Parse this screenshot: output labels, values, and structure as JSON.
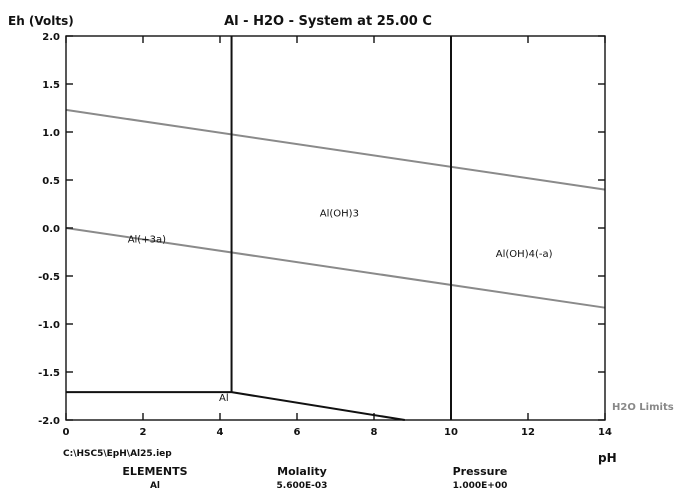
{
  "chart_data": {
    "type": "line",
    "title": "Al - H2O - System at 25.00 C",
    "ylabel": "Eh (Volts)",
    "xlabel": "pH",
    "xlim": [
      0,
      14
    ],
    "ylim": [
      -2.0,
      2.0
    ],
    "x_ticks": [
      0,
      2,
      4,
      6,
      8,
      10,
      12,
      14
    ],
    "y_ticks": [
      2.0,
      1.5,
      1.0,
      0.5,
      0.0,
      -0.5,
      -1.0,
      -1.5,
      -2.0
    ],
    "x_tick_labels": [
      "0",
      "2",
      "4",
      "6",
      "8",
      "10",
      "12",
      "14"
    ],
    "y_tick_labels": [
      "2.0",
      "1.5",
      "1.0",
      "0.5",
      "0.0",
      "-0.5",
      "-1.0",
      "-1.5",
      "-2.0"
    ],
    "water_limits": [
      {
        "points": [
          [
            0,
            1.23
          ],
          [
            14,
            0.4
          ]
        ],
        "color": "#8a8a8a"
      },
      {
        "points": [
          [
            0,
            0.0
          ],
          [
            14,
            -0.83
          ]
        ],
        "color": "#8a8a8a"
      }
    ],
    "boundaries": [
      {
        "points": [
          [
            4.3,
            2.0
          ],
          [
            4.3,
            -1.71
          ]
        ],
        "color": "#111111"
      },
      {
        "points": [
          [
            10.0,
            2.0
          ],
          [
            10.0,
            -2.0
          ]
        ],
        "color": "#111111"
      },
      {
        "points": [
          [
            0,
            -1.71
          ],
          [
            4.3,
            -1.71
          ]
        ],
        "color": "#111111"
      },
      {
        "points": [
          [
            4.3,
            -1.71
          ],
          [
            8.8,
            -2.0
          ]
        ],
        "color": "#111111"
      }
    ],
    "regions": [
      {
        "label": "Al(+3a)",
        "x": 2.1,
        "y": -0.15
      },
      {
        "label": "Al(OH)3",
        "x": 7.1,
        "y": 0.12
      },
      {
        "label": "Al(OH)4(-a)",
        "x": 11.9,
        "y": -0.3
      },
      {
        "label": "Al",
        "x": 4.1,
        "y": -1.8
      }
    ],
    "limits_label": "H2O Limits",
    "grid": false
  },
  "footer": {
    "file_path": "C:\\HSC5\\EpH\\Al25.iep",
    "elements_header": "ELEMENTS",
    "elements_value": "Al",
    "molality_header": "Molality",
    "molality_value": "5.600E-03",
    "pressure_header": "Pressure",
    "pressure_value": "1.000E+00"
  }
}
